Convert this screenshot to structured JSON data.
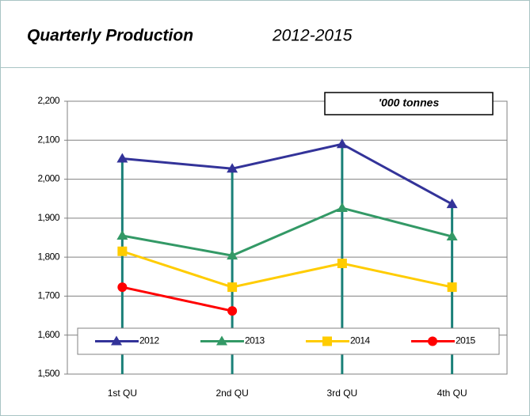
{
  "chart_data": {
    "type": "line",
    "title": "Quarterly Production",
    "subtitle": "2012-2015",
    "annotation": "'000 tonnes",
    "categories": [
      "1st QU",
      "2nd QU",
      "3rd QU",
      "4th QU"
    ],
    "series": [
      {
        "name": "2012",
        "color": "#333399",
        "marker": "triangle",
        "values": [
          2053,
          2027,
          2090,
          1936
        ]
      },
      {
        "name": "2013",
        "color": "#339966",
        "marker": "triangle",
        "values": [
          1855,
          1804,
          1926,
          1853
        ]
      },
      {
        "name": "2014",
        "color": "#ffcc00",
        "marker": "square",
        "values": [
          1815,
          1723,
          1784,
          1723
        ]
      },
      {
        "name": "2015",
        "color": "#ff0000",
        "marker": "circle",
        "values": [
          1723,
          1662,
          null,
          null
        ]
      }
    ],
    "ylim": [
      1500,
      2200
    ],
    "yticks": [
      {
        "value": 1500,
        "label": "1,500"
      },
      {
        "value": 1600,
        "label": "1,600"
      },
      {
        "value": 1700,
        "label": "1,700"
      },
      {
        "value": 1800,
        "label": "1,800"
      },
      {
        "value": 1900,
        "label": "1,900"
      },
      {
        "value": 2000,
        "label": "2,000"
      },
      {
        "value": 2100,
        "label": "2,100"
      },
      {
        "value": 2200,
        "label": "2,200"
      }
    ],
    "grid": true,
    "drop_lines": true,
    "drop_line_color": "#1a8078",
    "legend": "bottom"
  }
}
